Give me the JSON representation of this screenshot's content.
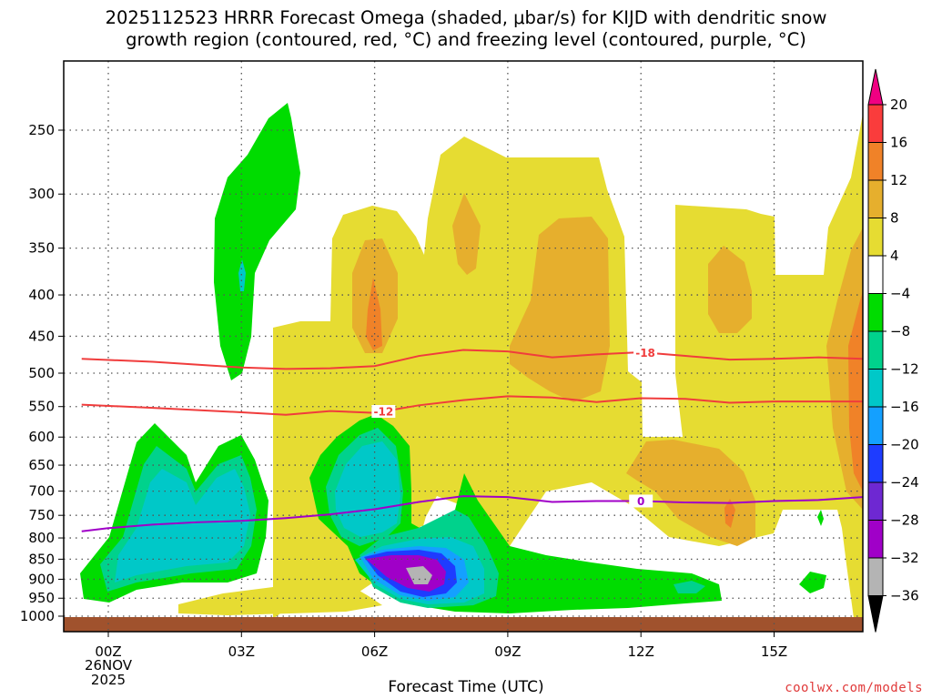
{
  "title_line1": "2025112523 HRRR Forecast Omega (shaded, μbar/s) for KIJD with dendritic snow",
  "title_line2": "growth region (contoured, red, °C) and freezing level (contoured, purple, °C)",
  "xlabel": "Forecast Time (UTC)",
  "credit": "coolwx.com/models",
  "colors": {
    "c_m36_m32": "#b4b4b4",
    "c_m32_m28": "#a000c8",
    "c_m28_m24": "#6e28d2",
    "c_m24_m20": "#1e3cff",
    "c_m20_m16": "#14a0ff",
    "c_m16_m12": "#00c8c8",
    "c_m12_m8": "#00d28c",
    "c_m8_m4": "#00dc00",
    "c_4_8": "#e6dc32",
    "c_8_12": "#e6af2d",
    "c_12_16": "#f08228",
    "c_16_20": "#fa3c3c",
    "c_gt20": "#f00082",
    "dendritic_contour": "#f03c3c",
    "freezing_contour": "#a000c8",
    "ground": "#a0522d"
  },
  "chart_data": {
    "type": "heatmap",
    "x_ticks": [
      "00Z",
      "03Z",
      "06Z",
      "09Z",
      "12Z",
      "15Z"
    ],
    "x_date_label": [
      "26NOV",
      "2025"
    ],
    "x_range_hours": [
      -0.6,
      17
    ],
    "y_ticks_hpa": [
      250,
      300,
      350,
      400,
      450,
      500,
      550,
      600,
      650,
      700,
      750,
      800,
      850,
      900,
      950,
      1000
    ],
    "y_range_hpa": [
      200,
      1010
    ],
    "grid": true,
    "colorbar": {
      "position": "right",
      "labels": [
        "20",
        "16",
        "12",
        "8",
        "4",
        "−4",
        "−8",
        "−12",
        "−16",
        "−20",
        "−24",
        "−28",
        "−32",
        "−36"
      ]
    },
    "contours": [
      {
        "name": "dendritic_upper",
        "label": "-18",
        "label_at_hour": 12.1,
        "x": [
          -0.6,
          1,
          3,
          4,
          5,
          6,
          7,
          8,
          9,
          10,
          11,
          12,
          13,
          14,
          15,
          16,
          17
        ],
        "y": [
          480,
          484,
          492,
          494,
          493,
          490,
          476,
          468,
          470,
          478,
          474,
          471,
          476,
          481,
          480,
          478,
          480
        ]
      },
      {
        "name": "dendritic_lower",
        "label": "-12",
        "label_at_hour": 6.2,
        "x": [
          -0.6,
          1,
          3,
          4,
          5,
          6,
          7,
          8,
          9,
          10,
          11,
          12,
          13,
          14,
          15,
          16,
          17
        ],
        "y": [
          547,
          552,
          559,
          563,
          557,
          560,
          548,
          540,
          534,
          536,
          543,
          537,
          538,
          544,
          542,
          542,
          542
        ]
      },
      {
        "name": "freezing_level",
        "label": "0",
        "label_at_hour": 12,
        "x": [
          -0.6,
          0,
          1,
          2,
          3,
          4,
          5,
          6,
          7,
          8,
          9,
          10,
          11,
          12,
          13,
          14,
          15,
          16,
          17
        ],
        "y": [
          785,
          778,
          770,
          765,
          762,
          756,
          748,
          737,
          722,
          710,
          712,
          722,
          720,
          720,
          723,
          724,
          720,
          718,
          712
        ]
      }
    ]
  }
}
